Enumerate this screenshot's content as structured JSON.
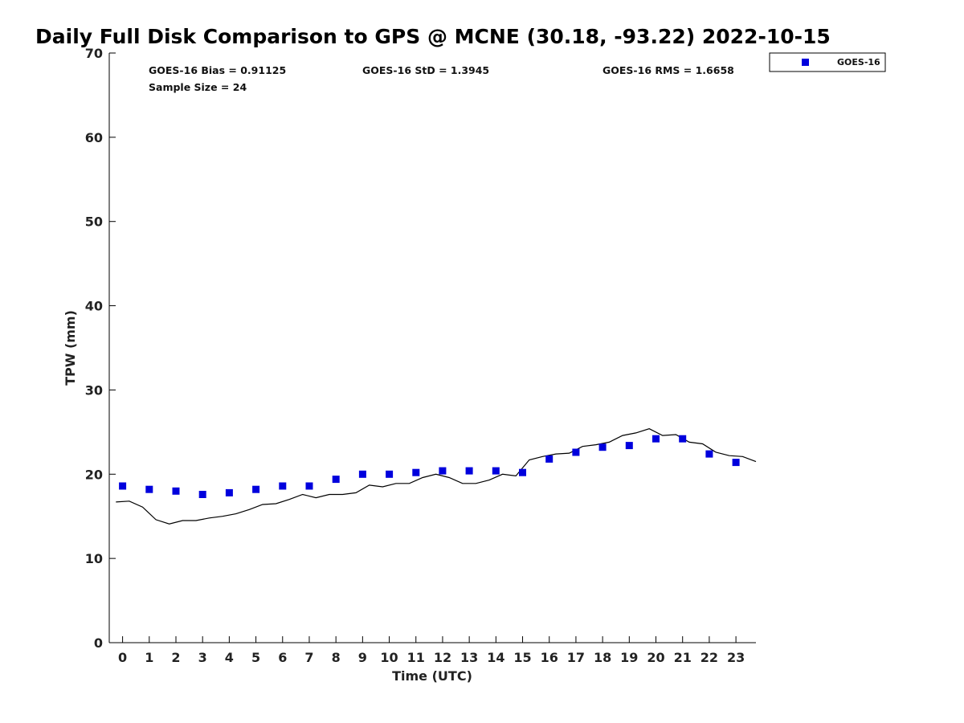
{
  "chart_data": {
    "type": "scatter",
    "title": "Daily Full Disk Comparison to GPS @ MCNE (30.18, -93.22) 2022-10-15",
    "xlabel": "Time (UTC)",
    "ylabel": "TPW (mm)",
    "xlim": [
      -0.5,
      23.75
    ],
    "ylim": [
      0,
      70
    ],
    "x_ticks": [
      "0",
      "1",
      "2",
      "3",
      "4",
      "5",
      "6",
      "7",
      "8",
      "9",
      "10",
      "11",
      "12",
      "13",
      "14",
      "15",
      "16",
      "17",
      "18",
      "19",
      "20",
      "21",
      "22",
      "23"
    ],
    "y_ticks": [
      "0",
      "10",
      "20",
      "30",
      "40",
      "50",
      "60",
      "70"
    ],
    "grid": false,
    "legend": {
      "position": "top-right",
      "entries": [
        "GOES-16"
      ]
    },
    "stats": {
      "bias": "GOES-16 Bias = 0.91125",
      "std": "GOES-16 StD = 1.3945",
      "rms": "GOES-16 RMS = 1.6658",
      "sample_size": "Sample Size = 24"
    },
    "series": [
      {
        "name": "GOES-16",
        "type": "scatter",
        "color": "#0000dd",
        "marker": "square",
        "x": [
          0,
          1,
          2,
          3,
          4,
          5,
          6,
          7,
          8,
          9,
          10,
          11,
          12,
          13,
          14,
          15,
          16,
          17,
          18,
          19,
          20,
          21,
          22,
          23
        ],
        "y": [
          18.6,
          18.2,
          18.0,
          17.6,
          17.8,
          18.2,
          18.6,
          18.6,
          19.4,
          20.0,
          20.0,
          20.2,
          20.4,
          20.4,
          20.4,
          20.2,
          21.8,
          22.6,
          23.2,
          23.4,
          24.2,
          24.2,
          22.4,
          21.4
        ]
      },
      {
        "type": "line",
        "color": "#000000",
        "x": [
          -0.25,
          0.25,
          0.75,
          1.25,
          1.75,
          2.25,
          2.75,
          3.25,
          3.75,
          4.25,
          4.75,
          5.25,
          5.75,
          6.25,
          6.75,
          7.25,
          7.75,
          8.25,
          8.75,
          9.25,
          9.75,
          10.25,
          10.75,
          11.25,
          11.75,
          12.25,
          12.75,
          13.25,
          13.75,
          14.25,
          14.75,
          15.25,
          15.75,
          16.25,
          16.75,
          17.25,
          17.75,
          18.25,
          18.75,
          19.25,
          19.75,
          20.25,
          20.75,
          21.25,
          21.75,
          22.25,
          22.75,
          23.25,
          23.75
        ],
        "y": [
          16.7,
          16.8,
          16.1,
          14.6,
          14.1,
          14.5,
          14.5,
          14.8,
          15.0,
          15.3,
          15.8,
          16.4,
          16.5,
          17.0,
          17.6,
          17.2,
          17.6,
          17.6,
          17.8,
          18.7,
          18.5,
          18.9,
          18.9,
          19.6,
          20.0,
          19.6,
          18.9,
          18.9,
          19.3,
          20.0,
          19.8,
          21.7,
          22.1,
          22.4,
          22.5,
          23.3,
          23.5,
          23.8,
          24.6,
          24.9,
          25.4,
          24.6,
          24.7,
          23.8,
          23.6,
          22.6,
          22.2,
          22.1,
          21.5
        ]
      }
    ]
  }
}
